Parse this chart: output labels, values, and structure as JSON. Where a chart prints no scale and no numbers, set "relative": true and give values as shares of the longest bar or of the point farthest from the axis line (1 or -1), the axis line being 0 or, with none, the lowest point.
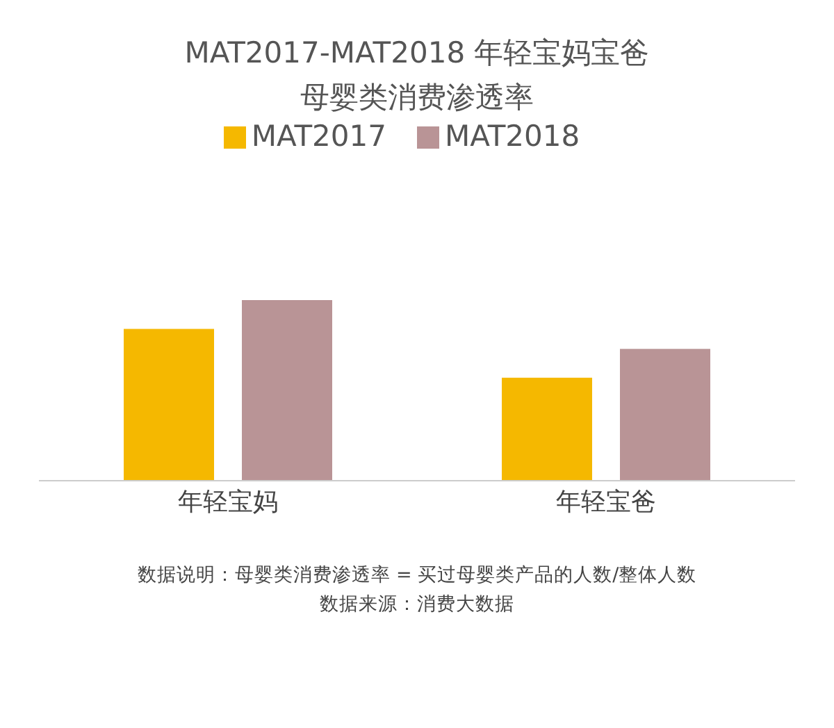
{
  "chart_data": {
    "type": "bar",
    "title": "MAT2017-MAT2018 年轻宝妈宝爸",
    "subtitle": "母婴类消费渗透率",
    "categories": [
      "年轻宝妈",
      "年轻宝爸"
    ],
    "series": [
      {
        "name": "MAT2017",
        "color": "#f5b800",
        "values": [
          0.84,
          0.57
        ]
      },
      {
        "name": "MAT2018",
        "color": "#b99496",
        "values": [
          1,
          0.73
        ]
      }
    ],
    "relative": true,
    "legend": "top",
    "grid": false,
    "annotations": [
      "数据说明：母婴类消费渗透率 = 买过母婴类产品的人数/整体人数",
      "数据来源：消费大数据"
    ]
  }
}
